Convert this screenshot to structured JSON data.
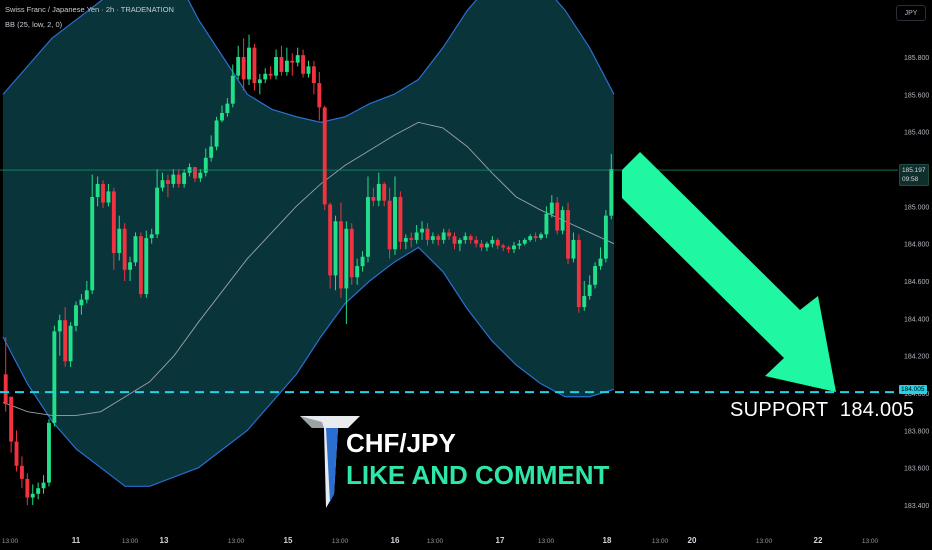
{
  "header": {
    "title": "Swiss Franc / Japanese Yen · 2h · TRADENATION",
    "indicator": "BB (25, low, 2, 0)"
  },
  "currency_button": "JPY",
  "price_badge": {
    "price": "185.197",
    "countdown": "09:58"
  },
  "support_badge": "184.005",
  "support_label": "SUPPORT  184.005",
  "overlay": {
    "pair": "CHF/JPY",
    "cta": "LIKE AND COMMENT"
  },
  "colors": {
    "up": "#22e089",
    "down": "#f0333f",
    "band_fill": "#0a3a40",
    "band_edge": "#2a6fcf",
    "basis": "#9aa3a6",
    "support_line": "#22d3e6",
    "arrow": "#1ff7a2",
    "price_line": "#16a06c"
  },
  "icons": {
    "logo": "tradenation-t-logo",
    "arrow": "down-right-arrow"
  },
  "chart_data": {
    "type": "candlestick",
    "title": "Swiss Franc / Japanese Yen · 2h · TRADENATION",
    "indicator": "BB (25, low, 2, 0)",
    "ylim": [
      183.35,
      186.0
    ],
    "y_ticks": [
      "185.800",
      "185.600",
      "185.400",
      "185.200",
      "185.000",
      "184.800",
      "184.600",
      "184.400",
      "184.200",
      "184.000",
      "183.800",
      "183.600",
      "183.400"
    ],
    "x_ticks": [
      "13:00",
      "11",
      "13:00",
      "13",
      "13:00",
      "15",
      "13:00",
      "16",
      "13:00",
      "17",
      "13:00",
      "18",
      "13:00",
      "20",
      "13:00",
      "22",
      "13:00"
    ],
    "support_level": 184.005,
    "last_price": 185.197,
    "candles": [
      [
        184.1,
        184.3,
        183.94,
        183.9,
        183.98
      ],
      [
        183.98,
        183.93,
        183.74,
        183.68,
        183.72
      ],
      [
        183.74,
        183.8,
        183.61,
        183.58,
        183.64
      ],
      [
        183.61,
        183.66,
        183.54,
        183.49,
        183.52
      ],
      [
        183.54,
        183.57,
        183.44,
        183.4,
        183.44
      ],
      [
        183.44,
        183.51,
        183.46,
        183.4,
        183.48
      ],
      [
        183.46,
        183.52,
        183.49,
        183.43,
        183.51
      ],
      [
        183.49,
        183.56,
        183.52,
        183.46,
        183.55
      ],
      [
        183.52,
        183.86,
        183.84,
        183.5,
        183.86
      ],
      [
        183.84,
        184.36,
        184.33,
        183.82,
        184.35
      ],
      [
        184.33,
        184.42,
        184.39,
        184.2,
        184.21
      ],
      [
        184.39,
        184.46,
        184.17,
        184.14,
        184.21
      ],
      [
        184.17,
        184.38,
        184.36,
        184.14,
        184.36
      ],
      [
        184.36,
        184.49,
        184.47,
        184.33,
        184.48
      ],
      [
        184.47,
        184.53,
        184.5,
        184.42,
        184.52
      ],
      [
        184.5,
        184.6,
        184.55,
        184.48,
        184.58
      ],
      [
        184.55,
        185.17,
        185.05,
        184.53,
        185.14
      ],
      [
        185.05,
        185.16,
        185.12,
        185.0,
        185.14
      ],
      [
        185.12,
        185.14,
        185.02,
        184.99,
        185.03
      ],
      [
        185.02,
        185.12,
        185.08,
        185.0,
        185.1
      ],
      [
        185.08,
        185.1,
        184.75,
        184.66,
        184.66
      ],
      [
        184.75,
        184.95,
        184.88,
        184.71,
        184.94
      ],
      [
        184.88,
        184.91,
        184.66,
        184.6,
        184.6
      ],
      [
        184.66,
        184.73,
        184.7,
        184.6,
        184.71
      ],
      [
        184.7,
        184.86,
        184.84,
        184.68,
        184.85
      ],
      [
        184.84,
        184.86,
        184.53,
        184.51,
        184.51
      ],
      [
        184.53,
        184.87,
        184.83,
        184.51,
        184.86
      ],
      [
        184.83,
        184.88,
        184.85,
        184.8,
        184.87
      ],
      [
        184.85,
        185.2,
        185.1,
        184.83,
        185.17
      ],
      [
        185.1,
        185.18,
        185.14,
        185.08,
        185.16
      ],
      [
        185.14,
        185.17,
        185.12,
        185.05,
        185.11
      ],
      [
        185.12,
        185.2,
        185.17,
        185.1,
        185.18
      ],
      [
        185.17,
        185.2,
        185.12,
        185.1,
        185.15
      ],
      [
        185.12,
        185.2,
        185.18,
        185.1,
        185.19
      ],
      [
        185.18,
        185.23,
        185.21,
        185.16,
        185.22
      ],
      [
        185.21,
        185.2,
        185.15,
        185.13,
        185.18
      ],
      [
        185.15,
        185.2,
        185.18,
        185.13,
        185.19
      ],
      [
        185.18,
        185.31,
        185.26,
        185.16,
        185.3
      ],
      [
        185.26,
        185.38,
        185.32,
        185.24,
        185.34
      ],
      [
        185.32,
        185.48,
        185.46,
        185.3,
        185.47
      ],
      [
        185.46,
        185.54,
        185.5,
        185.45,
        185.52
      ],
      [
        185.5,
        185.58,
        185.55,
        185.48,
        185.56
      ],
      [
        185.55,
        185.76,
        185.7,
        185.53,
        185.74
      ],
      [
        185.7,
        185.86,
        185.8,
        185.68,
        185.83
      ],
      [
        185.8,
        185.9,
        185.68,
        185.62,
        185.66
      ],
      [
        185.68,
        185.92,
        185.85,
        185.65,
        185.9
      ],
      [
        185.85,
        185.87,
        185.66,
        185.62,
        185.65
      ],
      [
        185.66,
        185.71,
        185.68,
        185.6,
        185.7
      ],
      [
        185.68,
        185.74,
        185.71,
        185.66,
        185.73
      ],
      [
        185.71,
        185.75,
        185.7,
        185.68,
        185.72
      ],
      [
        185.7,
        185.84,
        185.8,
        185.68,
        185.83
      ],
      [
        185.8,
        185.86,
        185.72,
        185.7,
        185.74
      ],
      [
        185.72,
        185.85,
        185.78,
        185.7,
        185.82
      ],
      [
        185.78,
        185.82,
        185.77,
        185.7,
        185.75
      ],
      [
        185.77,
        185.85,
        185.81,
        185.75,
        185.85
      ],
      [
        185.81,
        185.84,
        185.71,
        185.69,
        185.72
      ],
      [
        185.71,
        185.78,
        185.75,
        185.69,
        185.76
      ],
      [
        185.75,
        185.78,
        185.66,
        185.6,
        185.65
      ],
      [
        185.66,
        185.72,
        185.53,
        185.46,
        185.5
      ],
      [
        185.53,
        185.54,
        185.01,
        184.98,
        185.01
      ],
      [
        185.01,
        185.02,
        184.63,
        184.56,
        184.58
      ],
      [
        184.63,
        184.95,
        184.92,
        184.55,
        184.95
      ],
      [
        184.92,
        185.02,
        184.56,
        184.51,
        184.54
      ],
      [
        184.56,
        184.92,
        184.88,
        184.37,
        184.9
      ],
      [
        184.88,
        184.91,
        184.62,
        184.58,
        184.6
      ],
      [
        184.62,
        184.72,
        184.68,
        184.58,
        184.7
      ],
      [
        184.68,
        184.76,
        184.73,
        184.65,
        184.75
      ],
      [
        184.73,
        185.16,
        185.05,
        184.7,
        185.16
      ],
      [
        185.05,
        185.1,
        185.03,
        185.0,
        185.08
      ],
      [
        185.03,
        185.18,
        185.12,
        185.0,
        185.15
      ],
      [
        185.12,
        185.13,
        185.03,
        185.0,
        185.02
      ],
      [
        185.03,
        185.1,
        184.77,
        184.72,
        184.75
      ],
      [
        184.77,
        185.16,
        185.05,
        184.74,
        185.15
      ],
      [
        185.05,
        185.08,
        184.81,
        184.77,
        184.8
      ],
      [
        184.81,
        184.85,
        184.83,
        184.77,
        184.84
      ],
      [
        184.83,
        184.86,
        184.82,
        184.78,
        184.84
      ],
      [
        184.82,
        184.9,
        184.86,
        184.8,
        184.88
      ],
      [
        184.86,
        184.92,
        184.88,
        184.82,
        184.9
      ],
      [
        184.88,
        184.91,
        184.82,
        184.79,
        184.83
      ],
      [
        184.82,
        184.86,
        184.84,
        184.8,
        184.85
      ],
      [
        184.84,
        184.85,
        184.82,
        184.79,
        184.83
      ],
      [
        184.82,
        184.88,
        184.86,
        184.8,
        184.87
      ],
      [
        184.86,
        184.88,
        184.84,
        184.82,
        184.86
      ],
      [
        184.84,
        184.86,
        184.8,
        184.77,
        184.82
      ],
      [
        184.8,
        184.83,
        184.82,
        184.76,
        184.83
      ],
      [
        184.82,
        184.86,
        184.84,
        184.8,
        184.86
      ],
      [
        184.84,
        184.85,
        184.82,
        184.8,
        184.83
      ],
      [
        184.82,
        184.84,
        184.8,
        184.78,
        184.81
      ],
      [
        184.8,
        184.82,
        184.78,
        184.76,
        184.79
      ],
      [
        184.78,
        184.81,
        184.8,
        184.76,
        184.81
      ],
      [
        184.8,
        184.84,
        184.82,
        184.78,
        184.83
      ],
      [
        184.82,
        184.83,
        184.79,
        184.77,
        184.8
      ],
      [
        184.79,
        184.8,
        184.78,
        184.76,
        184.79
      ],
      [
        184.78,
        184.79,
        184.77,
        184.75,
        184.78
      ],
      [
        184.77,
        184.81,
        184.79,
        184.75,
        184.8
      ],
      [
        184.79,
        184.82,
        184.8,
        184.77,
        184.81
      ],
      [
        184.8,
        184.83,
        184.82,
        184.79,
        184.83
      ],
      [
        184.82,
        184.85,
        184.84,
        184.81,
        184.85
      ],
      [
        184.84,
        184.86,
        184.83,
        184.81,
        184.84
      ],
      [
        184.83,
        184.86,
        184.85,
        184.82,
        184.86
      ],
      [
        184.85,
        185.0,
        184.96,
        184.83,
        185.0
      ],
      [
        184.96,
        185.06,
        185.02,
        184.94,
        185.05
      ],
      [
        185.02,
        185.05,
        184.87,
        184.85,
        184.88
      ],
      [
        184.87,
        185.0,
        184.98,
        184.85,
        185.0
      ],
      [
        184.98,
        185.02,
        184.72,
        184.69,
        184.72
      ],
      [
        184.72,
        184.86,
        184.82,
        184.7,
        184.84
      ],
      [
        184.82,
        184.85,
        184.46,
        184.43,
        184.46
      ],
      [
        184.46,
        184.6,
        184.52,
        184.44,
        184.58
      ],
      [
        184.52,
        184.63,
        184.58,
        184.5,
        184.62
      ],
      [
        184.58,
        184.7,
        184.68,
        184.56,
        184.7
      ],
      [
        184.68,
        184.78,
        184.72,
        184.66,
        184.76
      ],
      [
        184.72,
        184.98,
        184.95,
        184.7,
        184.98
      ],
      [
        184.95,
        185.28,
        185.2,
        184.93,
        185.24
      ]
    ],
    "bb_upper": [
      185.6,
      185.75,
      185.9,
      186.0,
      186.1,
      186.2,
      186.3,
      186.25,
      186.0,
      185.8,
      185.6,
      185.52,
      185.48,
      185.45,
      185.48,
      185.55,
      185.6,
      185.68,
      185.85,
      186.05,
      186.2,
      186.25,
      186.2,
      186.05,
      185.85,
      185.6
    ],
    "bb_basis": [
      183.95,
      183.9,
      183.88,
      183.88,
      183.9,
      183.98,
      184.06,
      184.2,
      184.38,
      184.55,
      184.72,
      184.86,
      185.0,
      185.12,
      185.22,
      185.3,
      185.38,
      185.45,
      185.42,
      185.32,
      185.18,
      185.05,
      184.98,
      184.92,
      184.86,
      184.8
    ],
    "bb_lower": [
      184.3,
      184.05,
      183.85,
      183.7,
      183.6,
      183.5,
      183.5,
      183.55,
      183.6,
      183.7,
      183.8,
      183.95,
      184.1,
      184.3,
      184.48,
      184.6,
      184.7,
      184.78,
      184.65,
      184.45,
      184.28,
      184.15,
      184.05,
      183.98,
      183.98,
      184.02
    ]
  }
}
